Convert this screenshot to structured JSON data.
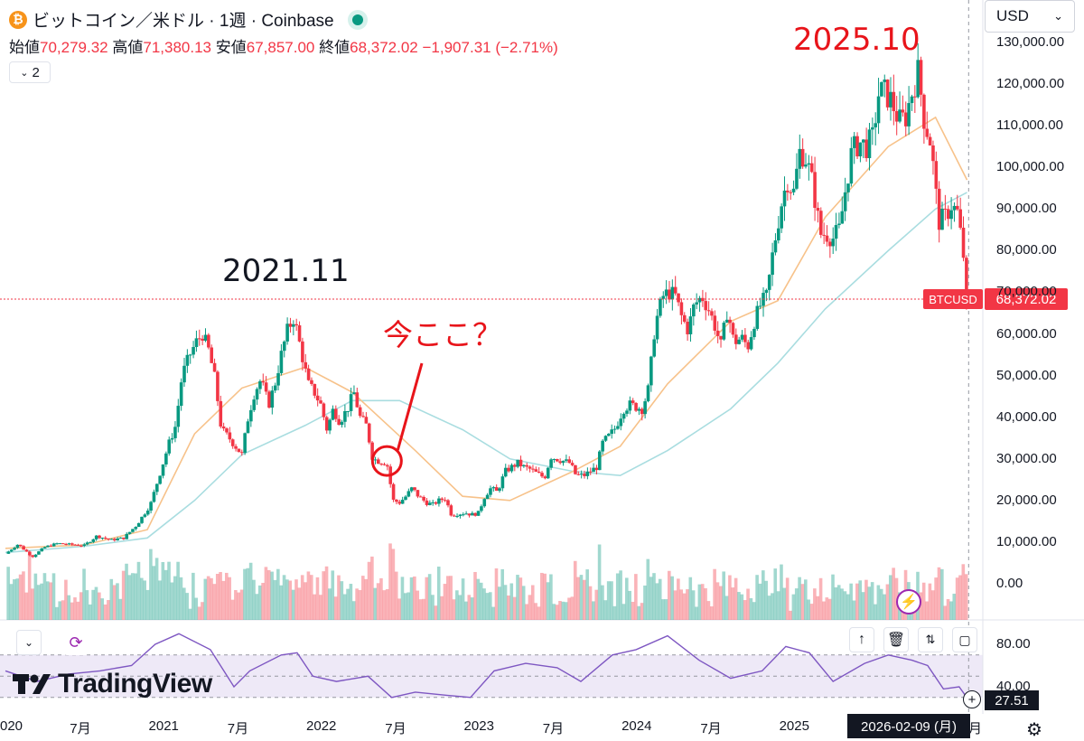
{
  "header": {
    "coin_icon": "₿",
    "title": "ビットコイン／米ドル · 1週 · Coinbase",
    "ohlc": {
      "open_label": "始値",
      "open": "70,279.32",
      "high_label": "高値",
      "high": "71,380.13",
      "low_label": "安値",
      "low": "67,857.00",
      "close_label": "終値",
      "close": "68,372.02",
      "change": "−1,907.31 (−2.71%)"
    },
    "indicator_count": "2",
    "currency": "USD"
  },
  "annotations": {
    "top_label": "2025.10",
    "mid_label": "2021.11",
    "here_label": "今ここ？"
  },
  "price_axis": [
    "130,000.00",
    "120,000.00",
    "110,000.00",
    "100,000.00",
    "90,000.00",
    "80,000.00",
    "70,000.00",
    "60,000.00",
    "50,000.00",
    "40,000.00",
    "30,000.00",
    "20,000.00",
    "10,000.00",
    "0.00"
  ],
  "rsi_axis": [
    "80.00",
    "40.00"
  ],
  "current": {
    "symbol": "BTCUSD",
    "price": "68,372.02",
    "rsi": "27.51",
    "date": "2026-02-09 (月)"
  },
  "time_axis": [
    "020",
    "7月",
    "2021",
    "7月",
    "2022",
    "7月",
    "2023",
    "7月",
    "2024",
    "7月",
    "2025",
    "7月",
    "月"
  ],
  "branding": {
    "logo_text": "TradingView"
  },
  "colors": {
    "up": "#089981",
    "down": "#f23645",
    "ma_fast": "#f7c28a",
    "ma_slow": "#a9dde0",
    "rsi": "#7e57c2",
    "annotation_red": "#e8141a"
  },
  "chart_data": {
    "type": "candlestick",
    "timeframe": "1W",
    "y_range": [
      -5000,
      132000
    ],
    "closes": [
      [
        2020.0,
        7200
      ],
      [
        2020.08,
        9500
      ],
      [
        2020.17,
        6500
      ],
      [
        2020.25,
        8800
      ],
      [
        2020.33,
        9700
      ],
      [
        2020.42,
        9400
      ],
      [
        2020.5,
        9200
      ],
      [
        2020.58,
        11500
      ],
      [
        2020.67,
        10500
      ],
      [
        2020.75,
        11000
      ],
      [
        2020.83,
        14000
      ],
      [
        2020.92,
        19000
      ],
      [
        2021.0,
        29000
      ],
      [
        2021.04,
        34000
      ],
      [
        2021.08,
        38000
      ],
      [
        2021.12,
        50000
      ],
      [
        2021.17,
        55000
      ],
      [
        2021.21,
        58000
      ],
      [
        2021.25,
        60000
      ],
      [
        2021.29,
        56000
      ],
      [
        2021.33,
        49000
      ],
      [
        2021.37,
        37000
      ],
      [
        2021.42,
        35000
      ],
      [
        2021.46,
        33000
      ],
      [
        2021.5,
        31000
      ],
      [
        2021.54,
        40000
      ],
      [
        2021.58,
        46000
      ],
      [
        2021.62,
        49000
      ],
      [
        2021.67,
        43000
      ],
      [
        2021.71,
        48000
      ],
      [
        2021.75,
        55000
      ],
      [
        2021.79,
        61000
      ],
      [
        2021.83,
        64000
      ],
      [
        2021.87,
        57000
      ],
      [
        2021.92,
        48000
      ],
      [
        2021.96,
        46000
      ],
      [
        2022.0,
        43000
      ],
      [
        2022.04,
        37000
      ],
      [
        2022.08,
        42000
      ],
      [
        2022.12,
        39000
      ],
      [
        2022.17,
        42000
      ],
      [
        2022.21,
        46000
      ],
      [
        2022.25,
        40000
      ],
      [
        2022.29,
        38000
      ],
      [
        2022.33,
        30000
      ],
      [
        2022.37,
        29500
      ],
      [
        2022.42,
        29000
      ],
      [
        2022.46,
        20000
      ],
      [
        2022.5,
        19500
      ],
      [
        2022.54,
        21000
      ],
      [
        2022.58,
        23000
      ],
      [
        2022.62,
        21000
      ],
      [
        2022.67,
        19500
      ],
      [
        2022.71,
        19000
      ],
      [
        2022.75,
        20000
      ],
      [
        2022.79,
        20500
      ],
      [
        2022.83,
        16500
      ],
      [
        2022.87,
        16800
      ],
      [
        2022.92,
        17000
      ],
      [
        2022.96,
        16600
      ],
      [
        2023.0,
        17000
      ],
      [
        2023.04,
        21000
      ],
      [
        2023.08,
        23000
      ],
      [
        2023.12,
        22000
      ],
      [
        2023.17,
        27000
      ],
      [
        2023.21,
        28000
      ],
      [
        2023.25,
        29000
      ],
      [
        2023.29,
        28000
      ],
      [
        2023.33,
        27500
      ],
      [
        2023.37,
        26500
      ],
      [
        2023.42,
        25500
      ],
      [
        2023.46,
        30500
      ],
      [
        2023.5,
        30000
      ],
      [
        2023.54,
        29500
      ],
      [
        2023.58,
        29000
      ],
      [
        2023.62,
        26000
      ],
      [
        2023.67,
        26000
      ],
      [
        2023.71,
        27000
      ],
      [
        2023.75,
        28000
      ],
      [
        2023.79,
        34000
      ],
      [
        2023.83,
        35500
      ],
      [
        2023.87,
        37500
      ],
      [
        2023.92,
        42000
      ],
      [
        2023.96,
        43000
      ],
      [
        2024.0,
        42500
      ],
      [
        2024.04,
        42000
      ],
      [
        2024.08,
        47000
      ],
      [
        2024.12,
        62000
      ],
      [
        2024.17,
        69000
      ],
      [
        2024.21,
        70000
      ],
      [
        2024.25,
        69000
      ],
      [
        2024.29,
        64000
      ],
      [
        2024.33,
        61000
      ],
      [
        2024.37,
        67000
      ],
      [
        2024.42,
        69000
      ],
      [
        2024.46,
        66000
      ],
      [
        2024.5,
        62000
      ],
      [
        2024.54,
        57000
      ],
      [
        2024.58,
        66000
      ],
      [
        2024.62,
        58000
      ],
      [
        2024.67,
        59000
      ],
      [
        2024.71,
        57000
      ],
      [
        2024.75,
        63000
      ],
      [
        2024.79,
        67000
      ],
      [
        2024.83,
        69000
      ],
      [
        2024.87,
        80000
      ],
      [
        2024.92,
        91000
      ],
      [
        2024.96,
        97000
      ],
      [
        2025.0,
        94000
      ],
      [
        2025.04,
        104000
      ],
      [
        2025.08,
        102000
      ],
      [
        2025.12,
        96000
      ],
      [
        2025.17,
        84000
      ],
      [
        2025.21,
        84000
      ],
      [
        2025.25,
        83000
      ],
      [
        2025.29,
        85000
      ],
      [
        2025.33,
        95000
      ],
      [
        2025.37,
        104000
      ],
      [
        2025.42,
        106000
      ],
      [
        2025.46,
        105000
      ],
      [
        2025.5,
        107000
      ],
      [
        2025.54,
        118000
      ],
      [
        2025.58,
        118000
      ],
      [
        2025.62,
        116000
      ],
      [
        2025.67,
        111000
      ],
      [
        2025.71,
        112000
      ],
      [
        2025.75,
        118000
      ],
      [
        2025.79,
        123000
      ],
      [
        2025.83,
        111000
      ],
      [
        2025.87,
        106000
      ],
      [
        2025.92,
        87000
      ],
      [
        2025.96,
        88000
      ],
      [
        2026.0,
        91000
      ],
      [
        2026.04,
        89000
      ],
      [
        2026.08,
        78000
      ],
      [
        2026.11,
        68372
      ]
    ],
    "ma_fast": [
      [
        2020.0,
        8500
      ],
      [
        2020.5,
        9300
      ],
      [
        2020.9,
        13000
      ],
      [
        2021.2,
        36000
      ],
      [
        2021.5,
        47000
      ],
      [
        2021.9,
        52000
      ],
      [
        2022.2,
        46000
      ],
      [
        2022.6,
        32000
      ],
      [
        2022.9,
        21000
      ],
      [
        2023.2,
        20000
      ],
      [
        2023.6,
        27000
      ],
      [
        2023.9,
        33000
      ],
      [
        2024.2,
        48000
      ],
      [
        2024.6,
        63000
      ],
      [
        2024.9,
        68000
      ],
      [
        2025.2,
        88000
      ],
      [
        2025.6,
        105000
      ],
      [
        2025.9,
        112000
      ],
      [
        2026.1,
        97000
      ]
    ],
    "ma_slow": [
      [
        2020.0,
        7500
      ],
      [
        2020.5,
        9000
      ],
      [
        2020.9,
        11000
      ],
      [
        2021.2,
        20000
      ],
      [
        2021.5,
        31000
      ],
      [
        2021.9,
        38000
      ],
      [
        2022.2,
        44000
      ],
      [
        2022.5,
        44000
      ],
      [
        2022.9,
        37000
      ],
      [
        2023.2,
        30000
      ],
      [
        2023.6,
        27000
      ],
      [
        2023.9,
        26000
      ],
      [
        2024.2,
        32000
      ],
      [
        2024.6,
        42000
      ],
      [
        2024.9,
        53000
      ],
      [
        2025.2,
        66000
      ],
      [
        2025.6,
        80000
      ],
      [
        2025.9,
        90000
      ],
      [
        2026.1,
        94000
      ]
    ],
    "rsi": [
      [
        2020.0,
        55
      ],
      [
        2020.2,
        45
      ],
      [
        2020.4,
        52
      ],
      [
        2020.6,
        55
      ],
      [
        2020.8,
        60
      ],
      [
        2020.95,
        80
      ],
      [
        2021.1,
        90
      ],
      [
        2021.3,
        75
      ],
      [
        2021.45,
        40
      ],
      [
        2021.55,
        55
      ],
      [
        2021.75,
        70
      ],
      [
        2021.85,
        72
      ],
      [
        2021.95,
        50
      ],
      [
        2022.1,
        45
      ],
      [
        2022.3,
        50
      ],
      [
        2022.45,
        30
      ],
      [
        2022.6,
        35
      ],
      [
        2022.8,
        32
      ],
      [
        2022.95,
        30
      ],
      [
        2023.1,
        55
      ],
      [
        2023.3,
        62
      ],
      [
        2023.5,
        58
      ],
      [
        2023.65,
        45
      ],
      [
        2023.85,
        70
      ],
      [
        2024.0,
        75
      ],
      [
        2024.2,
        88
      ],
      [
        2024.4,
        65
      ],
      [
        2024.6,
        48
      ],
      [
        2024.8,
        55
      ],
      [
        2024.95,
        78
      ],
      [
        2025.1,
        72
      ],
      [
        2025.25,
        45
      ],
      [
        2025.45,
        62
      ],
      [
        2025.6,
        70
      ],
      [
        2025.75,
        65
      ],
      [
        2025.85,
        60
      ],
      [
        2025.95,
        38
      ],
      [
        2026.05,
        40
      ],
      [
        2026.11,
        27.51
      ]
    ]
  }
}
